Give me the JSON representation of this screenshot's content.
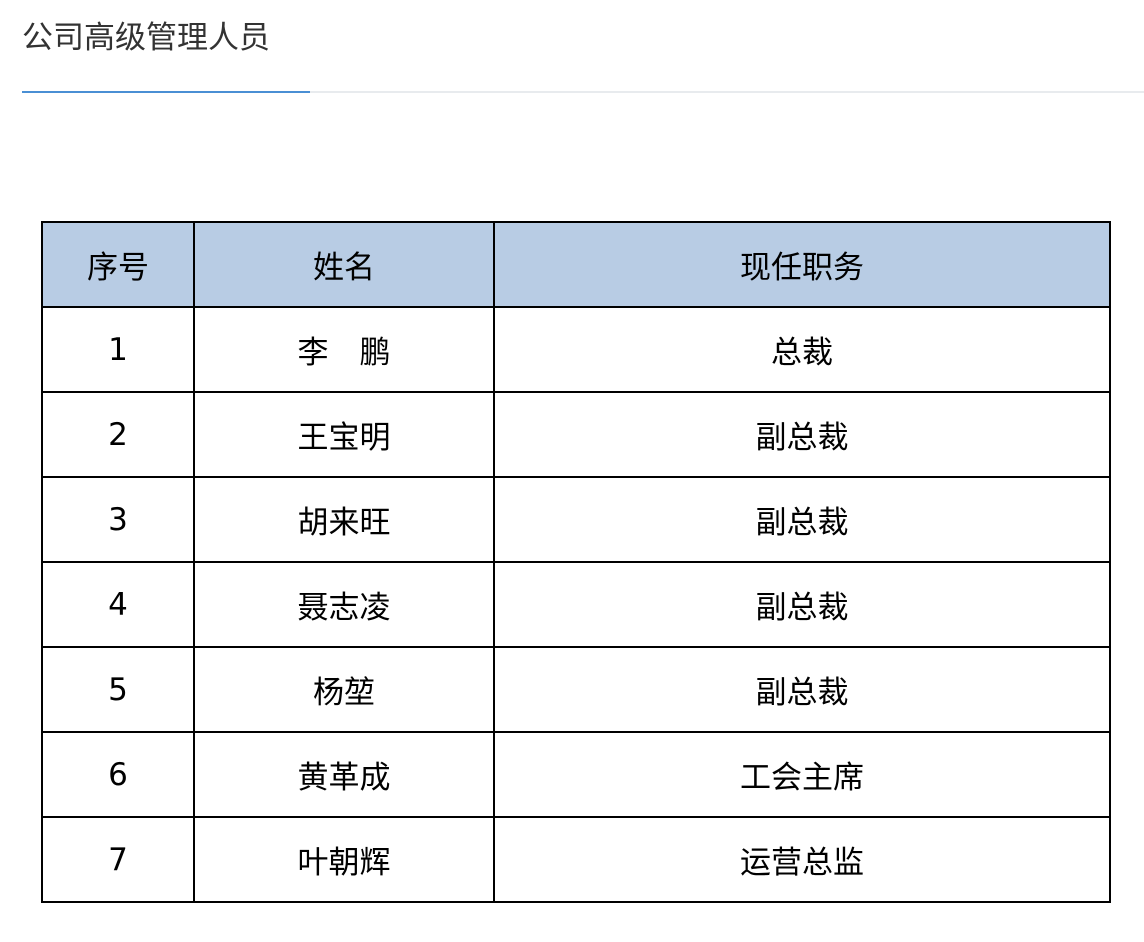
{
  "title": "公司高级管理人员",
  "colors": {
    "accent": "#4a8fd4",
    "header_bg": "#b8cce4"
  },
  "table": {
    "headers": [
      "序号",
      "姓名",
      "现任职务"
    ],
    "rows": [
      [
        "1",
        "李　鹏",
        "总裁"
      ],
      [
        "2",
        "王宝明",
        "副总裁"
      ],
      [
        "3",
        "胡来旺",
        "副总裁"
      ],
      [
        "4",
        "聂志凌",
        "副总裁"
      ],
      [
        "5",
        "杨堃",
        "副总裁"
      ],
      [
        "6",
        "黄革成",
        "工会主席"
      ],
      [
        "7",
        "叶朝辉",
        "运营总监"
      ]
    ]
  }
}
